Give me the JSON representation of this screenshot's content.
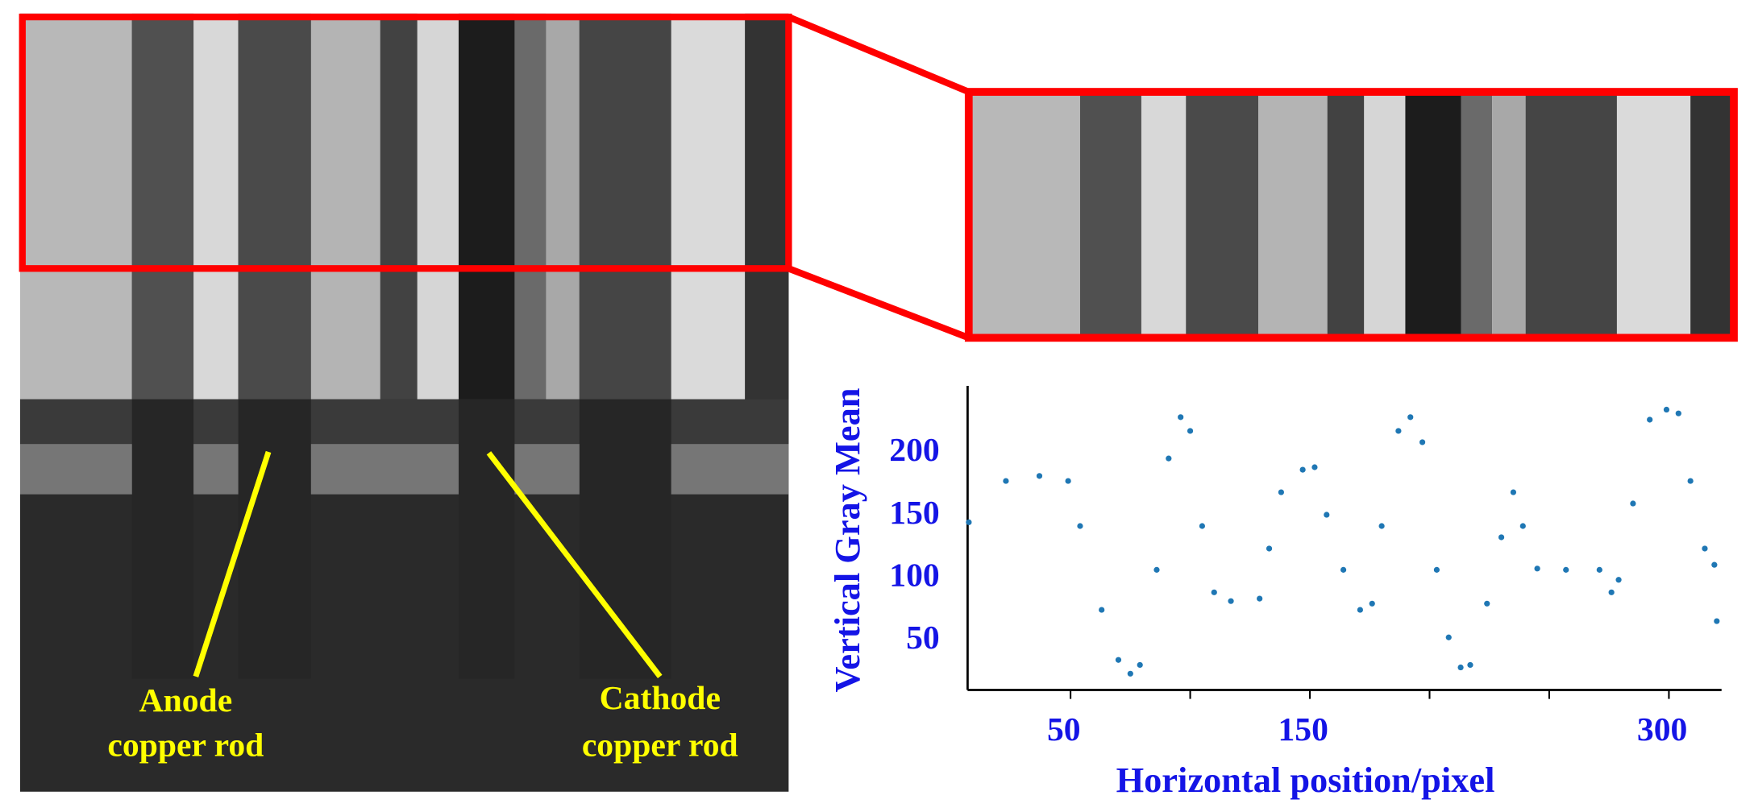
{
  "chart_data": {
    "type": "scatter",
    "ylabel": "Vertical Gray Mean",
    "xlabel": "Horizontal position/pixel",
    "annotations": [
      {
        "lines": [
          "Anode",
          "copper rod"
        ]
      },
      {
        "lines": [
          "Cathode",
          "copper rod"
        ]
      }
    ],
    "xlim": [
      7,
      322
    ],
    "ylim": [
      8,
      251
    ],
    "xticks": [
      50,
      150,
      300
    ],
    "xminor_ticks": [
      100,
      200,
      250
    ],
    "yticks": [
      50,
      100,
      150,
      200
    ],
    "series": [
      {
        "color": "#1f77b4",
        "x": [
          7.5,
          23,
          37,
          49,
          54,
          63,
          70,
          75,
          79,
          86,
          91,
          96,
          100,
          105,
          110,
          117,
          129,
          133,
          138,
          147,
          152,
          157,
          164,
          171,
          176,
          180,
          187,
          192,
          197,
          203,
          208,
          213,
          217,
          224,
          230,
          235,
          239,
          245,
          257,
          271,
          276,
          279,
          285,
          292,
          299,
          304,
          309,
          315,
          319,
          320
        ],
        "values": [
          142,
          175,
          179,
          175,
          139,
          72,
          32,
          21,
          28,
          104,
          193,
          226,
          215,
          139,
          86,
          79,
          81,
          121,
          166,
          184,
          186,
          148,
          104,
          72,
          77,
          139,
          215,
          226,
          206,
          104,
          50,
          26,
          28,
          77,
          130,
          166,
          139,
          105,
          104,
          104,
          86,
          96,
          157,
          224,
          232,
          229,
          175,
          121,
          108,
          63
        ]
      }
    ]
  }
}
